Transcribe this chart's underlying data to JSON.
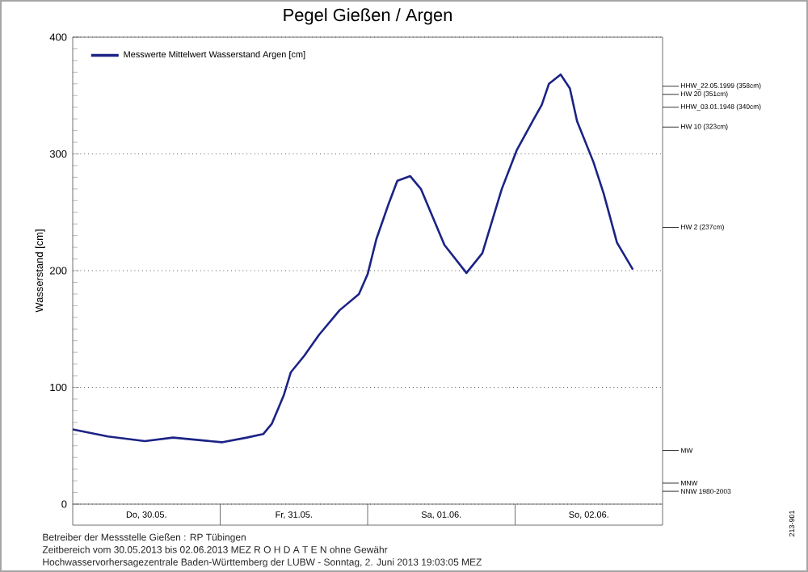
{
  "chart_data": {
    "type": "line",
    "title": "Pegel Gießen / Argen",
    "ylabel": "Wasserstand [cm]",
    "xlim": [
      "2013-05-30T00:00",
      "2013-06-03T00:00"
    ],
    "xticks": [
      {
        "value": "2013-05-30T12:00",
        "label": "Do, 30.05."
      },
      {
        "value": "2013-05-31T12:00",
        "label": "Fr, 31.05."
      },
      {
        "value": "2013-06-01T12:00",
        "label": "Sa, 01.06."
      },
      {
        "value": "2013-06-02T12:00",
        "label": "So, 02.06."
      }
    ],
    "ylim": [
      0,
      400
    ],
    "yticks": [
      0,
      100,
      200,
      300,
      400
    ],
    "grid": true,
    "legend": "top left",
    "marker": "none",
    "line_style": "solid",
    "series": [
      {
        "name": "Messwerte Mittelwert Wasserstand Argen [cm]",
        "color": "#1c2385",
        "x": [
          "2013-05-30T00:00",
          "2013-05-30T05:45",
          "2013-05-30T11:45",
          "2013-05-30T16:20",
          "2013-05-30T22:20",
          "2013-05-31T00:15",
          "2013-05-31T04:20",
          "2013-05-31T07:00",
          "2013-05-31T08:25",
          "2013-05-31T10:20",
          "2013-05-31T11:30",
          "2013-05-31T13:40",
          "2013-05-31T16:05",
          "2013-05-31T19:25",
          "2013-05-31T22:35",
          "2013-06-01T00:00",
          "2013-06-01T01:25",
          "2013-06-01T03:20",
          "2013-06-01T04:50",
          "2013-06-01T06:55",
          "2013-06-01T08:40",
          "2013-06-01T12:30",
          "2013-06-01T16:05",
          "2013-06-01T18:40",
          "2013-06-01T21:50",
          "2013-06-02T00:15",
          "2013-06-02T03:10",
          "2013-06-02T04:20",
          "2013-06-02T05:30",
          "2013-06-02T07:25",
          "2013-06-02T08:55",
          "2013-06-02T10:05",
          "2013-06-02T12:45",
          "2013-06-02T14:25",
          "2013-06-02T16:35",
          "2013-06-02T19:10"
        ],
        "values": [
          64,
          58,
          54,
          57,
          54,
          53,
          57,
          60,
          69,
          93,
          113,
          127,
          145,
          166,
          180,
          197,
          227,
          256,
          277,
          281,
          270,
          222,
          198,
          215,
          270,
          303,
          331,
          342,
          360,
          368,
          356,
          328,
          293,
          266,
          224,
          201
        ]
      }
    ],
    "ref_lines": [
      {
        "axis": "y",
        "value": 358,
        "label": "HHW_22.05.1999 (358cm)"
      },
      {
        "axis": "y",
        "value": 351,
        "label": "HW 20 (351cm)"
      },
      {
        "axis": "y",
        "value": 340,
        "label": "HHW_03.01.1948 (340cm)"
      },
      {
        "axis": "y",
        "value": 323,
        "label": "HW 10 (323cm)"
      },
      {
        "axis": "y",
        "value": 237,
        "label": "HW 2 (237cm)"
      },
      {
        "axis": "y",
        "value": 46,
        "label": "MW"
      },
      {
        "axis": "y",
        "value": 18,
        "label": "MNW"
      },
      {
        "axis": "y",
        "value": 11,
        "label": "NNW 1980-2003"
      }
    ],
    "annotations": [
      "Betreiber der Messstelle Gießen : RP Tübingen",
      "Zeitbereich vom 30.05.2013 bis 02.06.2013    MEZ    R O H D A T E N ohne Gewähr",
      "Hochwasservorhersagezentrale Baden-Württemberg der LUBW - Sonntag, 2. Juni 2013 19:03:05 MEZ",
      "213-901"
    ]
  }
}
